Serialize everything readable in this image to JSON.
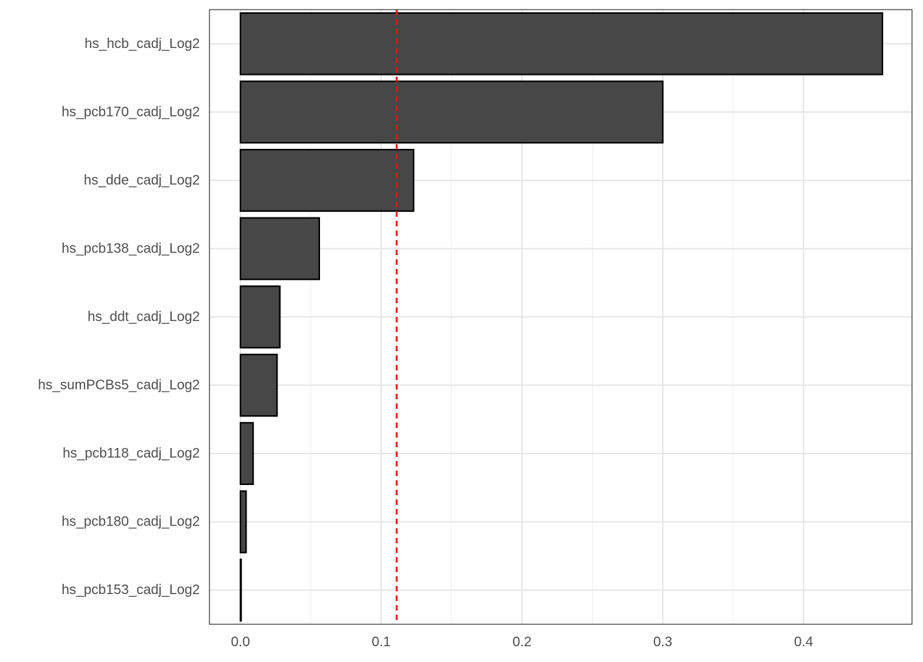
{
  "chart_data": {
    "type": "bar",
    "orientation": "horizontal",
    "title": "",
    "xlabel": "",
    "ylabel": "",
    "categories": [
      "hs_hcb_cadj_Log2",
      "hs_pcb170_cadj_Log2",
      "hs_dde_cadj_Log2",
      "hs_pcb138_cadj_Log2",
      "hs_ddt_cadj_Log2",
      "hs_sumPCBs5_cadj_Log2",
      "hs_pcb118_cadj_Log2",
      "hs_pcb180_cadj_Log2",
      "hs_pcb153_cadj_Log2"
    ],
    "values": [
      0.456,
      0.3,
      0.123,
      0.056,
      0.028,
      0.026,
      0.009,
      0.004,
      0.0005
    ],
    "xlim": [
      -0.022,
      0.477
    ],
    "x_ticks": [
      0.0,
      0.1,
      0.2,
      0.3,
      0.4
    ],
    "x_tick_labels": [
      "0.0",
      "0.1",
      "0.2",
      "0.3",
      "0.4"
    ],
    "reference_line": {
      "value": 0.111,
      "orientation": "vertical",
      "style": "dashed",
      "color": "#ee1111"
    },
    "bar_fill": "#474747",
    "bar_stroke": "#000000",
    "grid": true,
    "grid_color": "#e6e6e6",
    "legend": "none",
    "panel_border": true
  }
}
